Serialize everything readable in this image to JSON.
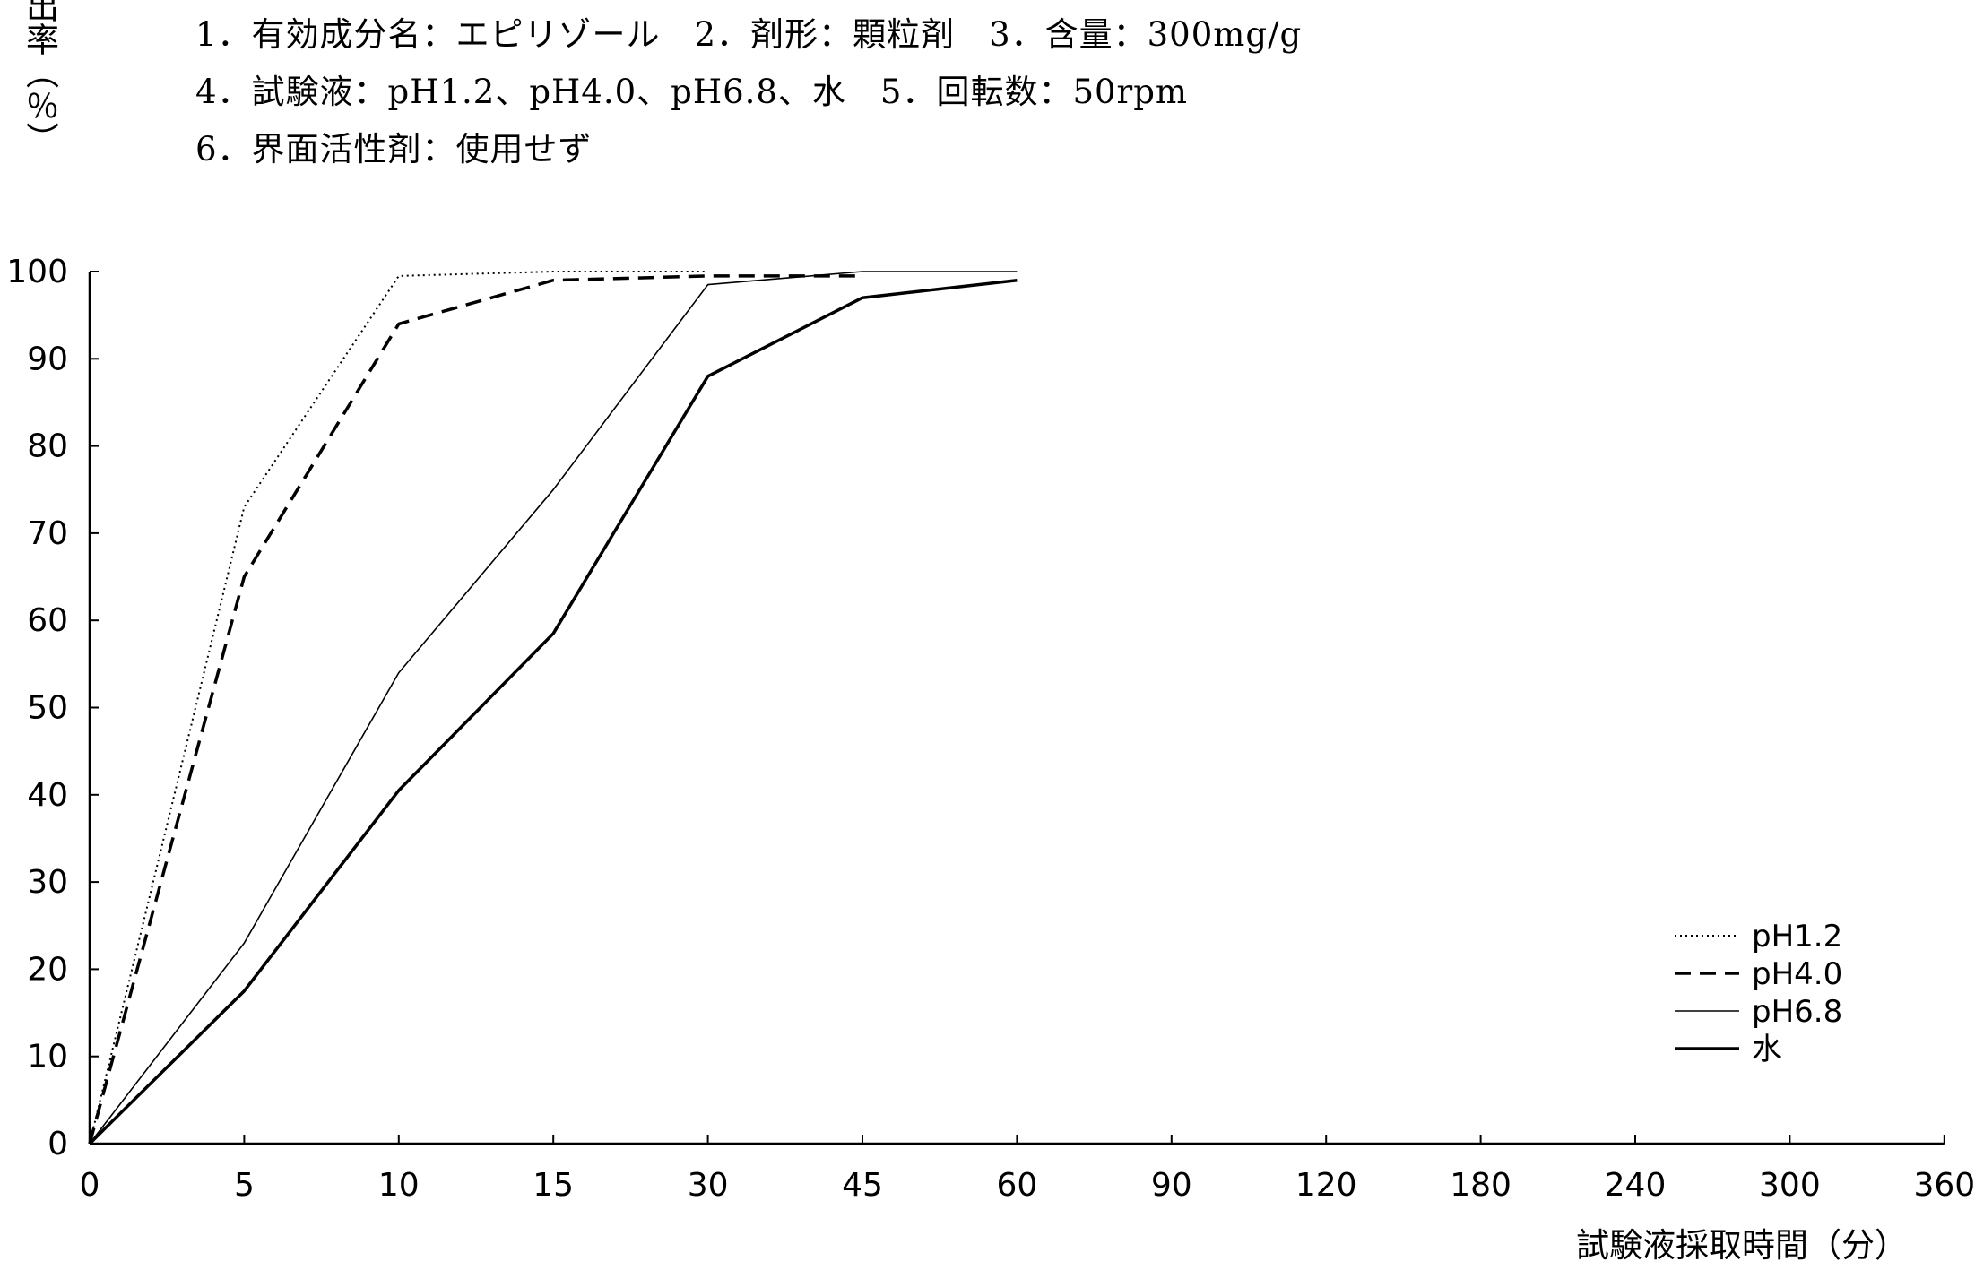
{
  "header": {
    "line1": "1．有効成分名：エピリゾール　2．剤形：顆粒剤　3．含量：300mg/g",
    "line2": "4．試験液：pH1.2、pH4.0、pH6.8、水　5．回転数：50rpm",
    "line3": "6．界面活性剤：使用せず"
  },
  "chart_data": {
    "type": "line",
    "ylabel": "溶出率（％）",
    "xlabel": "試験液採取時間（分）",
    "categories": [
      "0",
      "5",
      "10",
      "15",
      "30",
      "45",
      "60",
      "90",
      "120",
      "180",
      "240",
      "300",
      "360"
    ],
    "ylim": [
      0,
      100
    ],
    "yticks": [
      0,
      10,
      20,
      30,
      40,
      50,
      60,
      70,
      80,
      90,
      100
    ],
    "grid": false,
    "legend_position": "bottom-right",
    "series": [
      {
        "name": "pH1.2",
        "style": "dotted",
        "x": [
          "0",
          "5",
          "10",
          "15",
          "30"
        ],
        "values": [
          0,
          73,
          99.5,
          100,
          100
        ]
      },
      {
        "name": "pH4.0",
        "style": "dashed",
        "x": [
          "0",
          "5",
          "10",
          "15",
          "30",
          "45"
        ],
        "values": [
          0,
          65,
          94,
          99,
          99.5,
          99.5
        ]
      },
      {
        "name": "pH6.8",
        "style": "thin",
        "x": [
          "0",
          "5",
          "10",
          "15",
          "30",
          "45",
          "60"
        ],
        "values": [
          0,
          23,
          54,
          75,
          98.5,
          100,
          100
        ]
      },
      {
        "name": "水",
        "style": "thick",
        "x": [
          "0",
          "5",
          "10",
          "15",
          "30",
          "45",
          "60"
        ],
        "values": [
          0,
          17.5,
          40.5,
          58.5,
          88,
          97,
          99
        ]
      }
    ]
  }
}
